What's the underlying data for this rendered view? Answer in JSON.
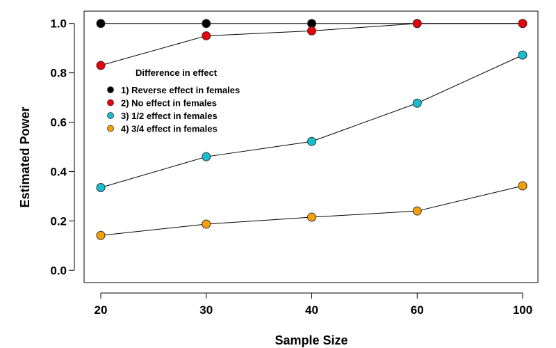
{
  "chart_data": {
    "type": "line",
    "title": "",
    "xlabel": "Sample Size",
    "ylabel": "Estimated Power",
    "categories": [
      "20",
      "30",
      "40",
      "60",
      "100"
    ],
    "ylim": [
      -0.05,
      1.05
    ],
    "yticks": [
      "0.0",
      "0.2",
      "0.4",
      "0.6",
      "0.8",
      "1.0"
    ],
    "grid": false,
    "legend": {
      "title": "Difference in effect",
      "placement": "upper-left"
    },
    "series": [
      {
        "name": "1) Reverse effect in females",
        "color": "#000000",
        "values": [
          1.0,
          1.0,
          1.0,
          1.0,
          1.0
        ]
      },
      {
        "name": "2) No effect in females",
        "color": "#e8000b",
        "values": [
          0.83,
          0.95,
          0.97,
          1.0,
          1.0
        ]
      },
      {
        "name": "3) 1/2 effect in females",
        "color": "#17becf",
        "values": [
          0.335,
          0.46,
          0.522,
          0.677,
          0.872
        ]
      },
      {
        "name": "4) 3/4 effect in females",
        "color": "#f5a00a",
        "values": [
          0.141,
          0.187,
          0.215,
          0.24,
          0.342
        ]
      }
    ]
  }
}
